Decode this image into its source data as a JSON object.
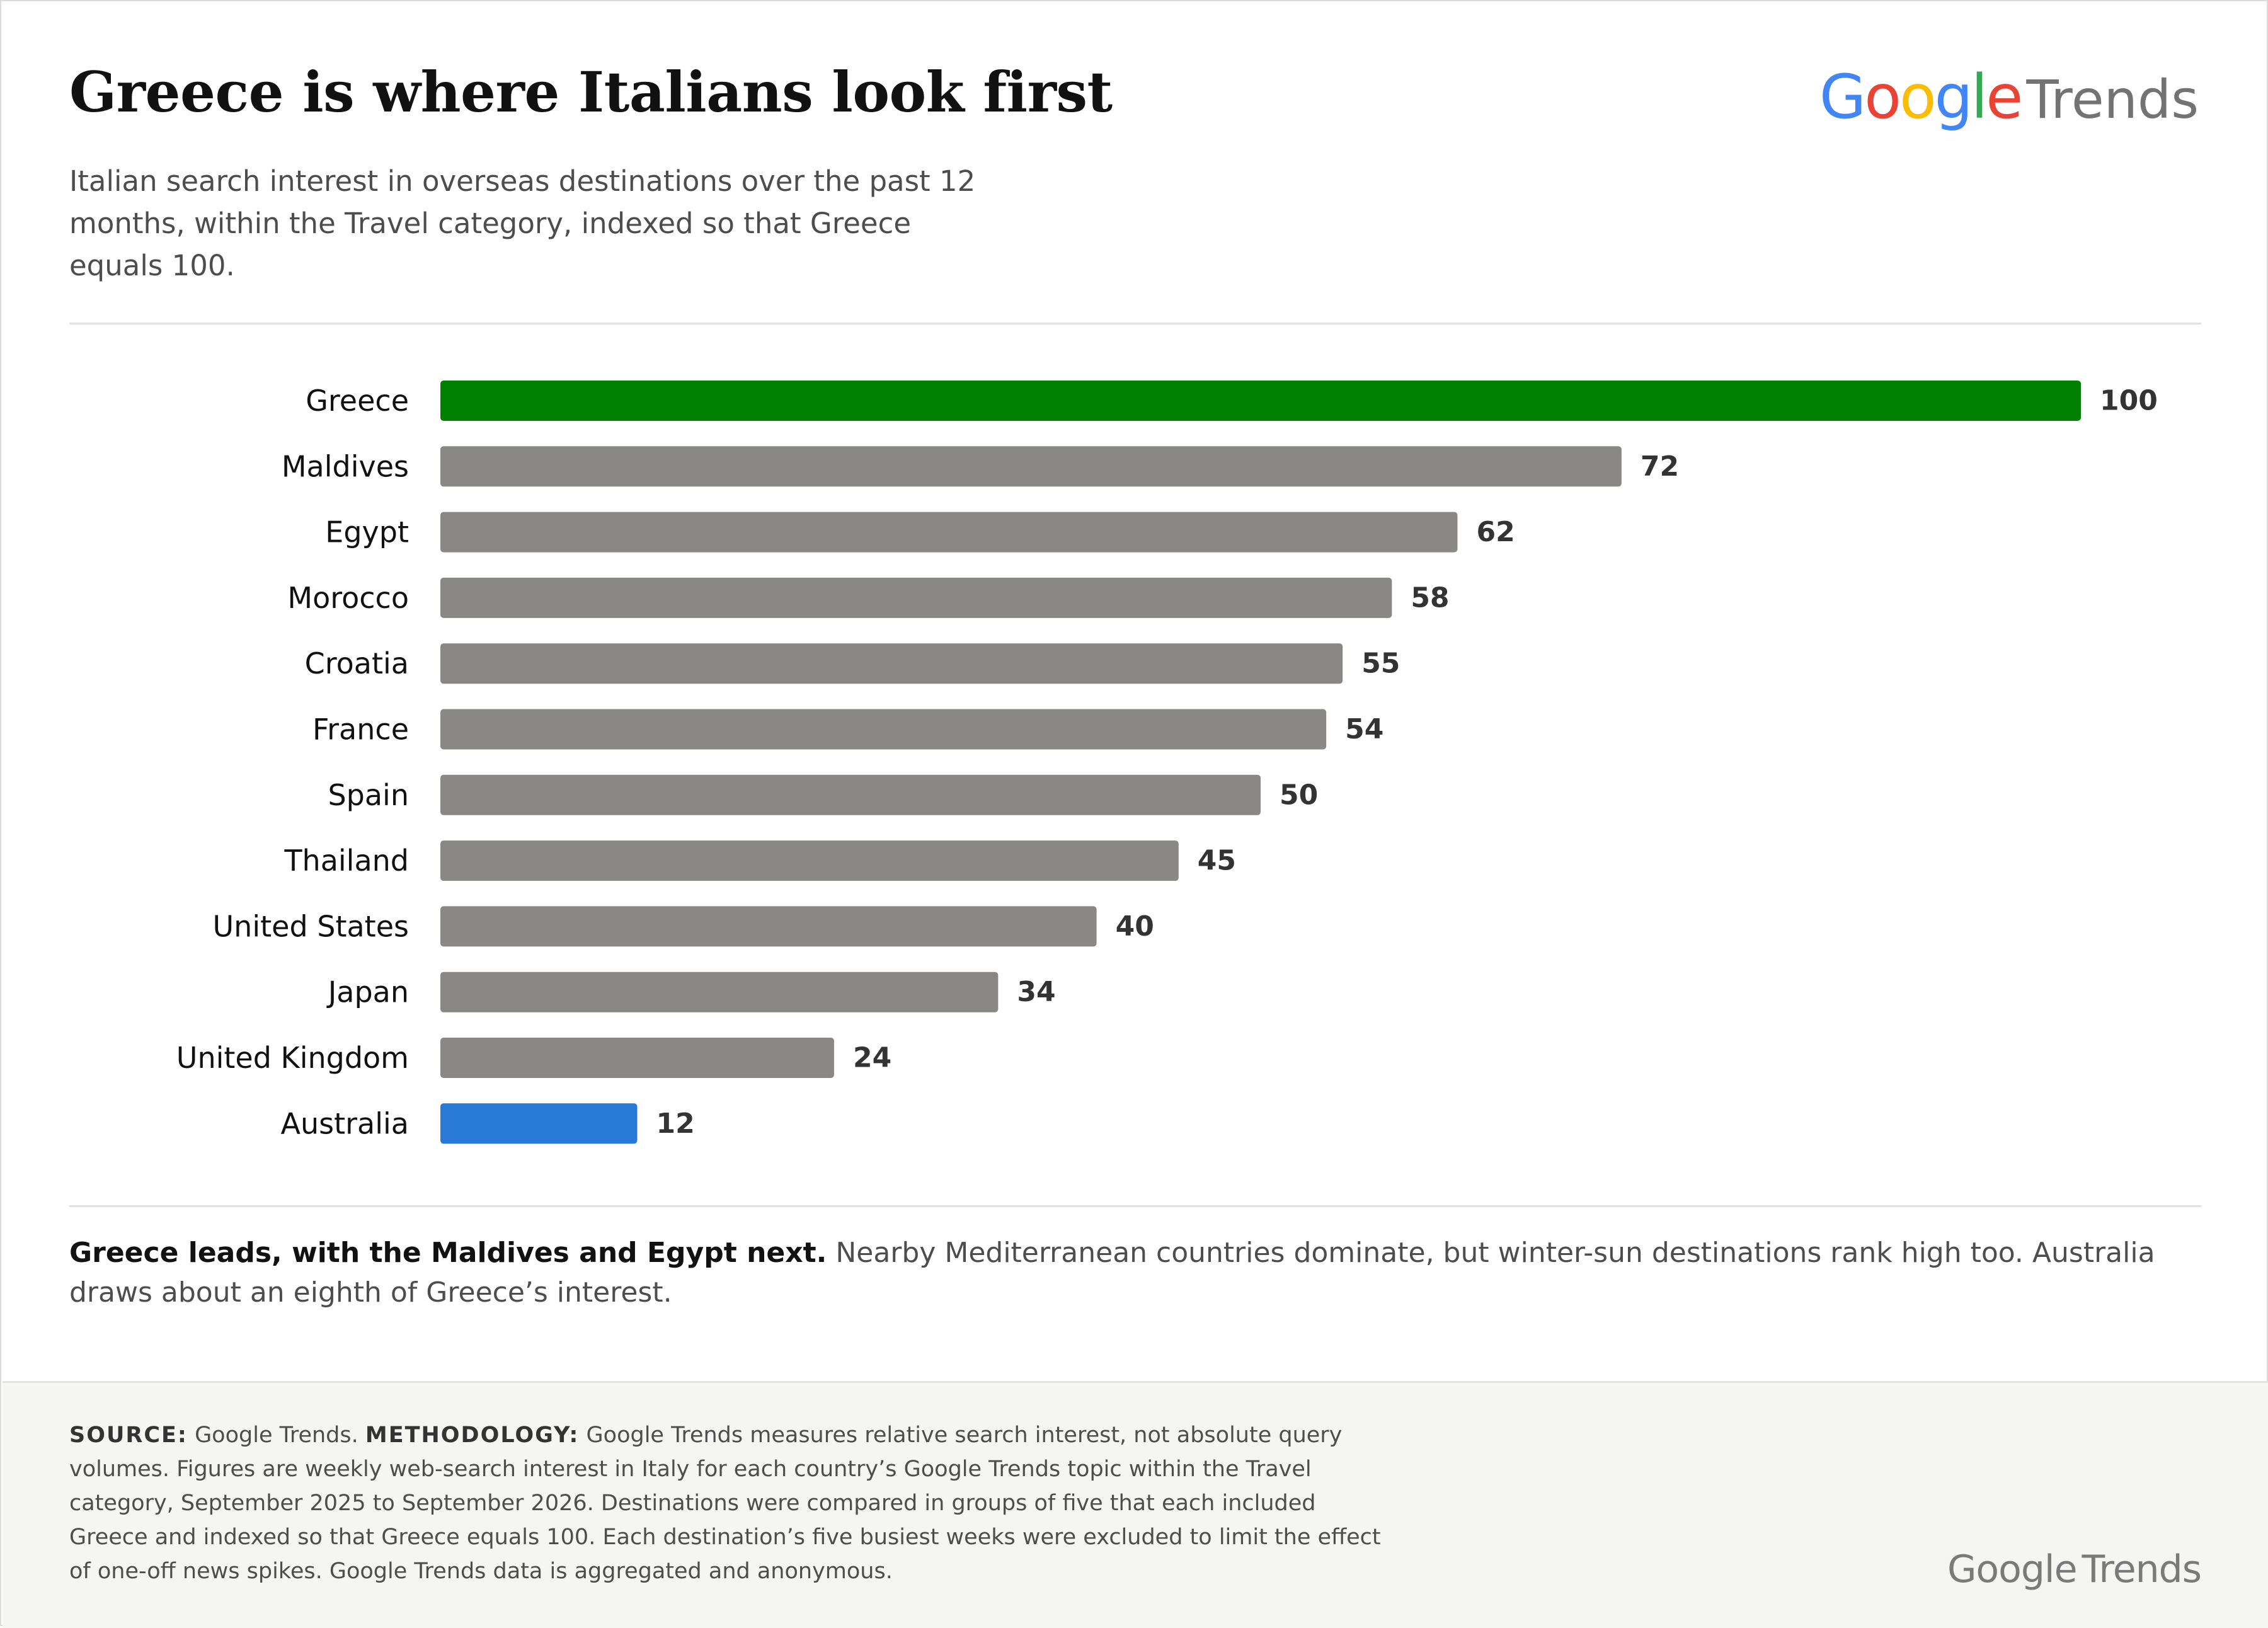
{
  "header": {
    "title": "Greece is where Italians look first",
    "subtitle": "Italian search interest in overseas destinations over the past 12 months, within the Travel category, indexed so that Greece equals 100."
  },
  "brand": {
    "logo_word": "Google",
    "logo_product": "Trends",
    "logo_colors": [
      "#4285F4",
      "#EA4335",
      "#FBBC05",
      "#4285F4",
      "#34A853",
      "#EA4335"
    ]
  },
  "chart_data": {
    "type": "bar",
    "orientation": "horizontal",
    "categories": [
      "Greece",
      "Maldives",
      "Egypt",
      "Morocco",
      "Croatia",
      "France",
      "Spain",
      "Thailand",
      "United States",
      "Japan",
      "United Kingdom",
      "Australia"
    ],
    "values": [
      100,
      72,
      62,
      58,
      55,
      54,
      50,
      45,
      40,
      34,
      24,
      12
    ],
    "xlim": [
      0,
      100
    ],
    "grid": false,
    "legend": "none",
    "bar_colors": [
      "#008000",
      "#8a8884",
      "#8a8884",
      "#8a8884",
      "#8a8884",
      "#8a8884",
      "#8a8884",
      "#8a8884",
      "#8a8884",
      "#8a8884",
      "#8a8884",
      "#2979d6"
    ],
    "label_color": "#111111",
    "value_label_color": "#333333"
  },
  "caption": {
    "lead": "Greece leads, with the Maldives and Egypt next.",
    "body": " Nearby Mediterranean countries dominate, but winter-sun destinations rank high too. Australia draws about an eighth of Greece’s interest."
  },
  "footer": {
    "source_label": "SOURCE:",
    "source_text": " Google Trends. ",
    "methodology_label": "METHODOLOGY:",
    "methodology_text": " Google Trends measures relative search interest, not absolute query volumes. Figures are weekly web-search interest in Italy for each country’s Google Trends topic within the Travel category, September 2025 to September 2026. Destinations were compared in groups of five that each included Greece and indexed so that Greece equals 100. Each destination’s five busiest weeks were excluded to limit the effect of one-off news spikes. Google Trends data is aggregated and anonymous."
  }
}
